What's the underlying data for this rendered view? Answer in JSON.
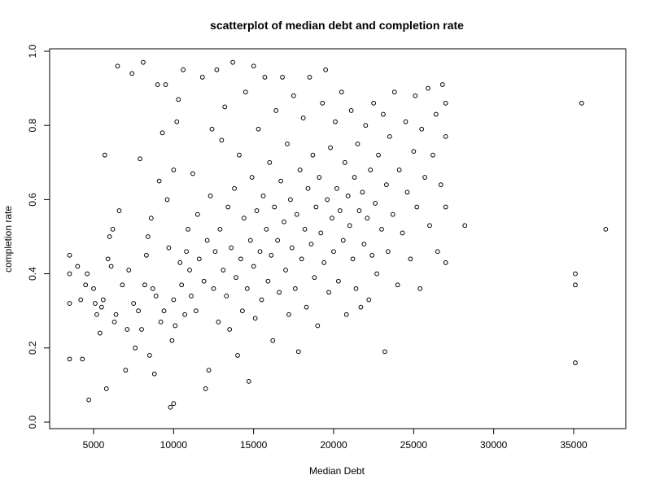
{
  "chart_data": {
    "type": "scatter",
    "title": "scatterplot of median debt and completion rate",
    "xlabel": "Median Debt",
    "ylabel": "completion rate",
    "xlim": [
      2500,
      38000
    ],
    "ylim": [
      0,
      1
    ],
    "xticks": [
      5000,
      10000,
      15000,
      20000,
      25000,
      30000,
      35000
    ],
    "yticks": [
      0.0,
      0.2,
      0.4,
      0.6,
      0.8,
      1.0
    ],
    "xtick_labels": [
      "5000",
      "10000",
      "15000",
      "20000",
      "25000",
      "30000",
      "35000"
    ],
    "ytick_labels": [
      "0.0",
      "0.2",
      "0.4",
      "0.6",
      "0.8",
      "1.0"
    ],
    "grid": false,
    "marker": "open-circle",
    "series": [
      {
        "points": [
          [
            3500,
            0.45
          ],
          [
            3500,
            0.4
          ],
          [
            3500,
            0.32
          ],
          [
            3500,
            0.17
          ],
          [
            4000,
            0.42
          ],
          [
            4200,
            0.33
          ],
          [
            4300,
            0.17
          ],
          [
            4500,
            0.37
          ],
          [
            4600,
            0.4
          ],
          [
            4700,
            0.06
          ],
          [
            5000,
            0.36
          ],
          [
            5100,
            0.32
          ],
          [
            5200,
            0.29
          ],
          [
            5400,
            0.24
          ],
          [
            5500,
            0.31
          ],
          [
            5600,
            0.33
          ],
          [
            5700,
            0.72
          ],
          [
            5800,
            0.09
          ],
          [
            5900,
            0.44
          ],
          [
            6000,
            0.5
          ],
          [
            6100,
            0.42
          ],
          [
            6200,
            0.52
          ],
          [
            6300,
            0.27
          ],
          [
            6400,
            0.29
          ],
          [
            6500,
            0.96
          ],
          [
            6600,
            0.57
          ],
          [
            6800,
            0.37
          ],
          [
            7000,
            0.14
          ],
          [
            7100,
            0.25
          ],
          [
            7200,
            0.41
          ],
          [
            7400,
            0.94
          ],
          [
            7500,
            0.32
          ],
          [
            7600,
            0.2
          ],
          [
            7800,
            0.3
          ],
          [
            7900,
            0.71
          ],
          [
            8000,
            0.25
          ],
          [
            8100,
            0.97
          ],
          [
            8200,
            0.37
          ],
          [
            8300,
            0.45
          ],
          [
            8400,
            0.5
          ],
          [
            8500,
            0.18
          ],
          [
            8600,
            0.55
          ],
          [
            8700,
            0.36
          ],
          [
            8800,
            0.13
          ],
          [
            8900,
            0.34
          ],
          [
            9000,
            0.91
          ],
          [
            9100,
            0.65
          ],
          [
            9200,
            0.27
          ],
          [
            9300,
            0.78
          ],
          [
            9400,
            0.3
          ],
          [
            9500,
            0.91
          ],
          [
            9600,
            0.6
          ],
          [
            9700,
            0.47
          ],
          [
            9800,
            0.04
          ],
          [
            9900,
            0.22
          ],
          [
            10000,
            0.05
          ],
          [
            10000,
            0.68
          ],
          [
            10000,
            0.33
          ],
          [
            10100,
            0.26
          ],
          [
            10200,
            0.81
          ],
          [
            10300,
            0.87
          ],
          [
            10400,
            0.43
          ],
          [
            10500,
            0.37
          ],
          [
            10600,
            0.95
          ],
          [
            10700,
            0.29
          ],
          [
            10800,
            0.46
          ],
          [
            10900,
            0.52
          ],
          [
            11000,
            0.41
          ],
          [
            11100,
            0.34
          ],
          [
            11200,
            0.67
          ],
          [
            11400,
            0.3
          ],
          [
            11500,
            0.56
          ],
          [
            11600,
            0.44
          ],
          [
            11800,
            0.93
          ],
          [
            11900,
            0.38
          ],
          [
            12000,
            0.09
          ],
          [
            12100,
            0.49
          ],
          [
            12200,
            0.14
          ],
          [
            12300,
            0.61
          ],
          [
            12400,
            0.79
          ],
          [
            12500,
            0.36
          ],
          [
            12600,
            0.46
          ],
          [
            12700,
            0.95
          ],
          [
            12800,
            0.27
          ],
          [
            12900,
            0.52
          ],
          [
            13000,
            0.76
          ],
          [
            13100,
            0.41
          ],
          [
            13200,
            0.85
          ],
          [
            13300,
            0.34
          ],
          [
            13400,
            0.58
          ],
          [
            13500,
            0.25
          ],
          [
            13600,
            0.47
          ],
          [
            13700,
            0.97
          ],
          [
            13800,
            0.63
          ],
          [
            13900,
            0.39
          ],
          [
            14000,
            0.18
          ],
          [
            14100,
            0.72
          ],
          [
            14200,
            0.44
          ],
          [
            14300,
            0.3
          ],
          [
            14400,
            0.55
          ],
          [
            14500,
            0.89
          ],
          [
            14600,
            0.36
          ],
          [
            14700,
            0.11
          ],
          [
            14800,
            0.49
          ],
          [
            14900,
            0.66
          ],
          [
            15000,
            0.42
          ],
          [
            15000,
            0.96
          ],
          [
            15100,
            0.28
          ],
          [
            15200,
            0.57
          ],
          [
            15300,
            0.79
          ],
          [
            15400,
            0.46
          ],
          [
            15500,
            0.33
          ],
          [
            15600,
            0.61
          ],
          [
            15700,
            0.93
          ],
          [
            15800,
            0.52
          ],
          [
            15900,
            0.38
          ],
          [
            16000,
            0.7
          ],
          [
            16100,
            0.45
          ],
          [
            16200,
            0.22
          ],
          [
            16300,
            0.58
          ],
          [
            16400,
            0.84
          ],
          [
            16500,
            0.49
          ],
          [
            16600,
            0.35
          ],
          [
            16700,
            0.65
          ],
          [
            16800,
            0.93
          ],
          [
            16900,
            0.54
          ],
          [
            17000,
            0.41
          ],
          [
            17100,
            0.75
          ],
          [
            17200,
            0.29
          ],
          [
            17300,
            0.6
          ],
          [
            17400,
            0.47
          ],
          [
            17500,
            0.88
          ],
          [
            17600,
            0.36
          ],
          [
            17700,
            0.56
          ],
          [
            17800,
            0.19
          ],
          [
            17900,
            0.68
          ],
          [
            18000,
            0.44
          ],
          [
            18100,
            0.82
          ],
          [
            18200,
            0.52
          ],
          [
            18300,
            0.31
          ],
          [
            18400,
            0.63
          ],
          [
            18500,
            0.93
          ],
          [
            18600,
            0.48
          ],
          [
            18700,
            0.72
          ],
          [
            18800,
            0.39
          ],
          [
            18900,
            0.58
          ],
          [
            19000,
            0.26
          ],
          [
            19100,
            0.66
          ],
          [
            19200,
            0.51
          ],
          [
            19300,
            0.86
          ],
          [
            19400,
            0.43
          ],
          [
            19500,
            0.95
          ],
          [
            19600,
            0.6
          ],
          [
            19700,
            0.35
          ],
          [
            19800,
            0.74
          ],
          [
            19900,
            0.55
          ],
          [
            20000,
            0.46
          ],
          [
            20100,
            0.81
          ],
          [
            20200,
            0.63
          ],
          [
            20300,
            0.38
          ],
          [
            20400,
            0.57
          ],
          [
            20500,
            0.89
          ],
          [
            20600,
            0.49
          ],
          [
            20700,
            0.7
          ],
          [
            20800,
            0.29
          ],
          [
            20900,
            0.61
          ],
          [
            21000,
            0.53
          ],
          [
            21100,
            0.84
          ],
          [
            21200,
            0.44
          ],
          [
            21300,
            0.66
          ],
          [
            21400,
            0.36
          ],
          [
            21500,
            0.75
          ],
          [
            21600,
            0.57
          ],
          [
            21700,
            0.31
          ],
          [
            21800,
            0.62
          ],
          [
            21900,
            0.48
          ],
          [
            22000,
            0.8
          ],
          [
            22100,
            0.55
          ],
          [
            22200,
            0.33
          ],
          [
            22300,
            0.68
          ],
          [
            22400,
            0.45
          ],
          [
            22500,
            0.86
          ],
          [
            22600,
            0.59
          ],
          [
            22700,
            0.4
          ],
          [
            22800,
            0.72
          ],
          [
            23000,
            0.52
          ],
          [
            23100,
            0.83
          ],
          [
            23200,
            0.19
          ],
          [
            23300,
            0.64
          ],
          [
            23400,
            0.46
          ],
          [
            23500,
            0.77
          ],
          [
            23700,
            0.56
          ],
          [
            23800,
            0.89
          ],
          [
            24000,
            0.37
          ],
          [
            24100,
            0.68
          ],
          [
            24300,
            0.51
          ],
          [
            24500,
            0.81
          ],
          [
            24600,
            0.62
          ],
          [
            24800,
            0.44
          ],
          [
            25000,
            0.73
          ],
          [
            25100,
            0.88
          ],
          [
            25200,
            0.58
          ],
          [
            25400,
            0.36
          ],
          [
            25500,
            0.79
          ],
          [
            25700,
            0.66
          ],
          [
            25900,
            0.9
          ],
          [
            26000,
            0.53
          ],
          [
            26200,
            0.72
          ],
          [
            26400,
            0.83
          ],
          [
            26500,
            0.46
          ],
          [
            26700,
            0.64
          ],
          [
            26800,
            0.91
          ],
          [
            27000,
            0.77
          ],
          [
            27000,
            0.43
          ],
          [
            27000,
            0.58
          ],
          [
            27000,
            0.86
          ],
          [
            28200,
            0.53
          ],
          [
            35100,
            0.4
          ],
          [
            35100,
            0.37
          ],
          [
            35100,
            0.16
          ],
          [
            35500,
            0.86
          ],
          [
            37000,
            0.52
          ]
        ]
      }
    ]
  }
}
